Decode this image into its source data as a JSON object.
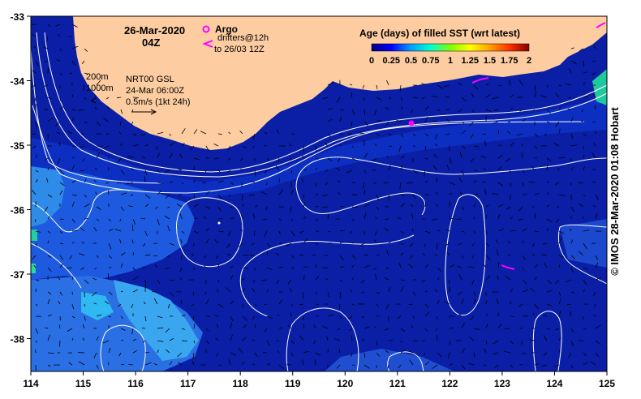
{
  "title": {
    "date": "26-Mar-2020",
    "time": "04Z"
  },
  "legend_argo": {
    "label": "Argo",
    "drifters": "drifters@12h",
    "drifters_to": "to 26/03 12Z"
  },
  "colorbar": {
    "title": "Age (days) of filled SST (wrt latest)",
    "ticks": [
      "0",
      "0.25",
      "0.5",
      "0.75",
      "1",
      "1.25",
      "1.5",
      "1.75",
      "2"
    ],
    "colors": [
      "#000080",
      "#0000ff",
      "#00a0ff",
      "#00ffd0",
      "#80ff00",
      "#ffff00",
      "#ffa000",
      "#ff3000",
      "#800000"
    ]
  },
  "isobaths": {
    "line1": "200m",
    "line2": "1000m"
  },
  "current_info": {
    "line1": "NRT00 GSL",
    "line2": "24-Mar 06:00Z",
    "line3": "0.5m/s (1kt 24h)"
  },
  "x_ticks": [
    "114",
    "115",
    "116",
    "117",
    "118",
    "119",
    "120",
    "121",
    "122",
    "123",
    "124",
    "125"
  ],
  "y_ticks": [
    "-33",
    "-34",
    "-35",
    "-36",
    "-37",
    "-38"
  ],
  "credit": "© IMOS 28-Mar-2020 01:08 Hobart",
  "colors": {
    "ocean": "#0a1fa6",
    "ocean_light": "#1e5ae0",
    "ocean_cyan": "#30b8f0",
    "land": "#fdcda1",
    "argo": "#ff00ff"
  }
}
